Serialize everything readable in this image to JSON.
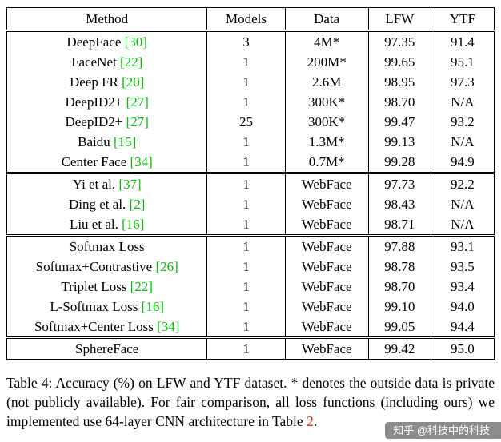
{
  "table": {
    "headers": [
      "Method",
      "Models",
      "Data",
      "LFW",
      "YTF"
    ],
    "groups": [
      {
        "rows": [
          {
            "method": "DeepFace",
            "cite": "[30]",
            "models": "3",
            "data": "4M*",
            "lfw": "97.35",
            "ytf": "91.4",
            "lfw_bold": false,
            "ytf_bold": false
          },
          {
            "method": "FaceNet",
            "cite": "[22]",
            "models": "1",
            "data": "200M*",
            "lfw": "99.65",
            "ytf": "95.1",
            "lfw_bold": true,
            "ytf_bold": false
          },
          {
            "method": "Deep FR",
            "cite": "[20]",
            "models": "1",
            "data": "2.6M",
            "lfw": "98.95",
            "ytf": "97.3",
            "lfw_bold": false,
            "ytf_bold": true
          },
          {
            "method": "DeepID2+",
            "cite": "[27]",
            "models": "1",
            "data": "300K*",
            "lfw": "98.70",
            "ytf": "N/A",
            "lfw_bold": false,
            "ytf_bold": false
          },
          {
            "method": "DeepID2+",
            "cite": "[27]",
            "models": "25",
            "data": "300K*",
            "lfw": "99.47",
            "ytf": "93.2",
            "lfw_bold": false,
            "ytf_bold": false
          },
          {
            "method": "Baidu",
            "cite": "[15]",
            "models": "1",
            "data": "1.3M*",
            "lfw": "99.13",
            "ytf": "N/A",
            "lfw_bold": false,
            "ytf_bold": false
          },
          {
            "method": "Center Face",
            "cite": "[34]",
            "models": "1",
            "data": "0.7M*",
            "lfw": "99.28",
            "ytf": "94.9",
            "lfw_bold": false,
            "ytf_bold": false
          }
        ]
      },
      {
        "rows": [
          {
            "method": "Yi et al.",
            "cite": "[37]",
            "models": "1",
            "data": "WebFace",
            "lfw": "97.73",
            "ytf": "92.2",
            "lfw_bold": false,
            "ytf_bold": false
          },
          {
            "method": "Ding et al.",
            "cite": "[2]",
            "models": "1",
            "data": "WebFace",
            "lfw": "98.43",
            "ytf": "N/A",
            "lfw_bold": false,
            "ytf_bold": false
          },
          {
            "method": "Liu et al.",
            "cite": "[16]",
            "models": "1",
            "data": "WebFace",
            "lfw": "98.71",
            "ytf": "N/A",
            "lfw_bold": false,
            "ytf_bold": false
          }
        ]
      },
      {
        "rows": [
          {
            "method": "Softmax Loss",
            "cite": "",
            "models": "1",
            "data": "WebFace",
            "lfw": "97.88",
            "ytf": "93.1",
            "lfw_bold": false,
            "ytf_bold": false
          },
          {
            "method": "Softmax+Contrastive",
            "cite": "[26]",
            "models": "1",
            "data": "WebFace",
            "lfw": "98.78",
            "ytf": "93.5",
            "lfw_bold": false,
            "ytf_bold": false
          },
          {
            "method": "Triplet Loss",
            "cite": "[22]",
            "models": "1",
            "data": "WebFace",
            "lfw": "98.70",
            "ytf": "93.4",
            "lfw_bold": false,
            "ytf_bold": false
          },
          {
            "method": "L-Softmax Loss",
            "cite": "[16]",
            "models": "1",
            "data": "WebFace",
            "lfw": "99.10",
            "ytf": "94.0",
            "lfw_bold": false,
            "ytf_bold": false
          },
          {
            "method": "Softmax+Center Loss",
            "cite": "[34]",
            "models": "1",
            "data": "WebFace",
            "lfw": "99.05",
            "ytf": "94.4",
            "lfw_bold": false,
            "ytf_bold": false
          }
        ]
      },
      {
        "rows": [
          {
            "method": "SphereFace",
            "cite": "",
            "models": "1",
            "data": "WebFace",
            "lfw": "99.42",
            "ytf": "95.0",
            "lfw_bold": true,
            "ytf_bold": true
          }
        ]
      }
    ]
  },
  "caption": {
    "text": "Table 4: Accuracy (%) on LFW and YTF dataset. * denotes the outside data is private (not publicly available). For fair comparison, all loss functions (including ours) we implemented use 64-layer CNN architecture in Table ",
    "link": "2",
    "suffix": "."
  },
  "watermark": "知乎 @科技中的科技",
  "colors": {
    "citation_green": "#00c400",
    "link_red": "#e02b20",
    "watermark_bg": "rgba(45,45,45,0.55)"
  }
}
